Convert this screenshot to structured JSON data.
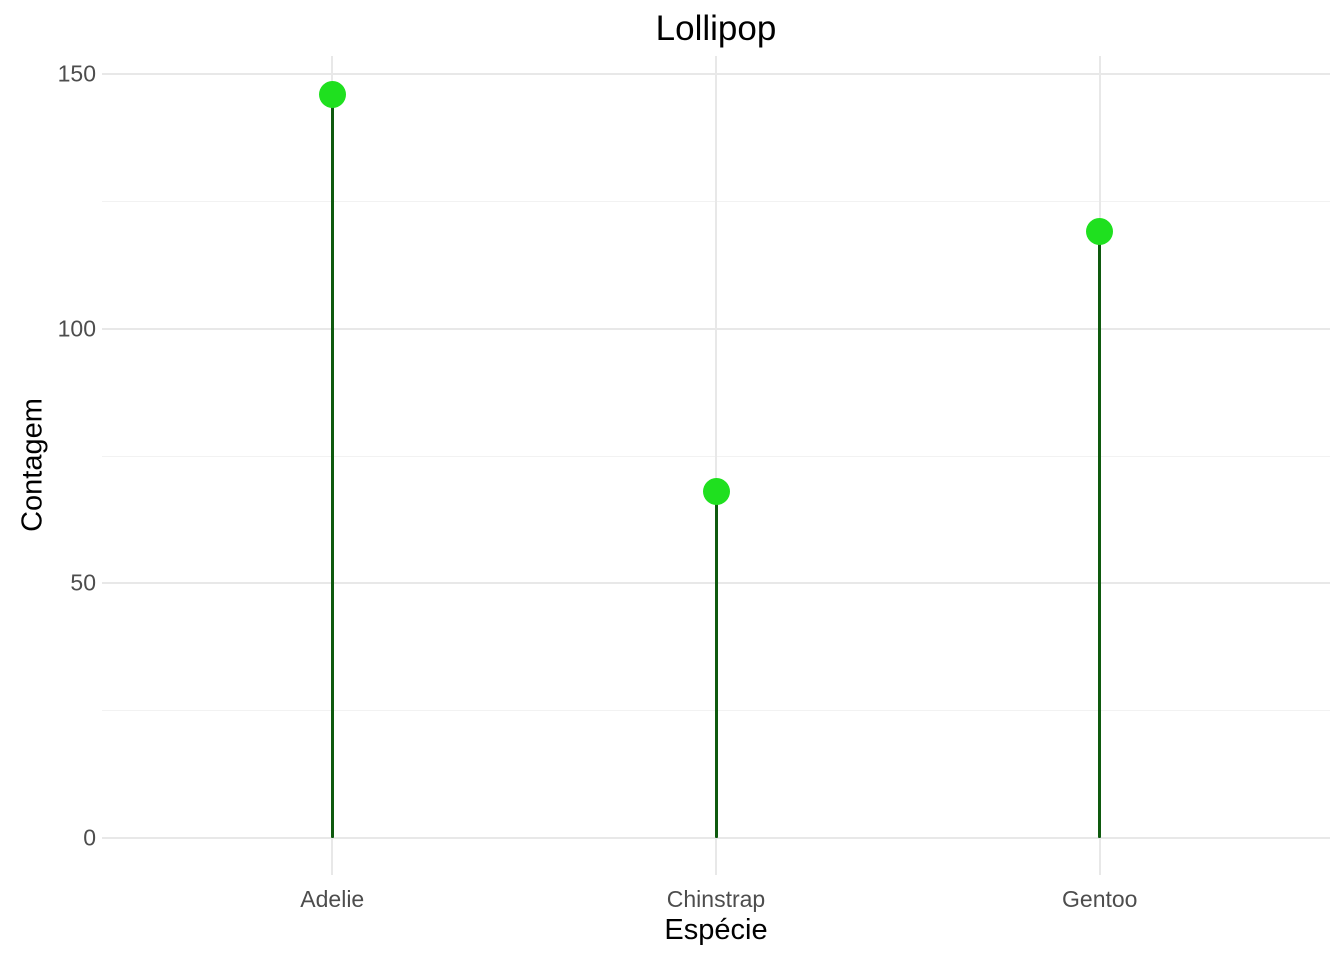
{
  "chart_data": {
    "type": "lollipop",
    "title": "Lollipop",
    "xlabel": "Espécie",
    "ylabel": "Contagem",
    "categories": [
      "Adelie",
      "Chinstrap",
      "Gentoo"
    ],
    "values": [
      146,
      68,
      119
    ],
    "ylim": [
      0,
      150
    ],
    "yticks_major": [
      0,
      50,
      100,
      150
    ],
    "yticks_minor": [
      25,
      75,
      125
    ],
    "grid": "on",
    "legend": "none",
    "colors": {
      "point_green": "#1fe01f",
      "stem_darkgreen": "#0e5a0e",
      "grid_major": "#e8e8e8",
      "grid_minor": "#f2f2f2",
      "tick_label_gray": "#4d4d4d",
      "title_black": "#000000",
      "background": "#ffffff"
    }
  }
}
